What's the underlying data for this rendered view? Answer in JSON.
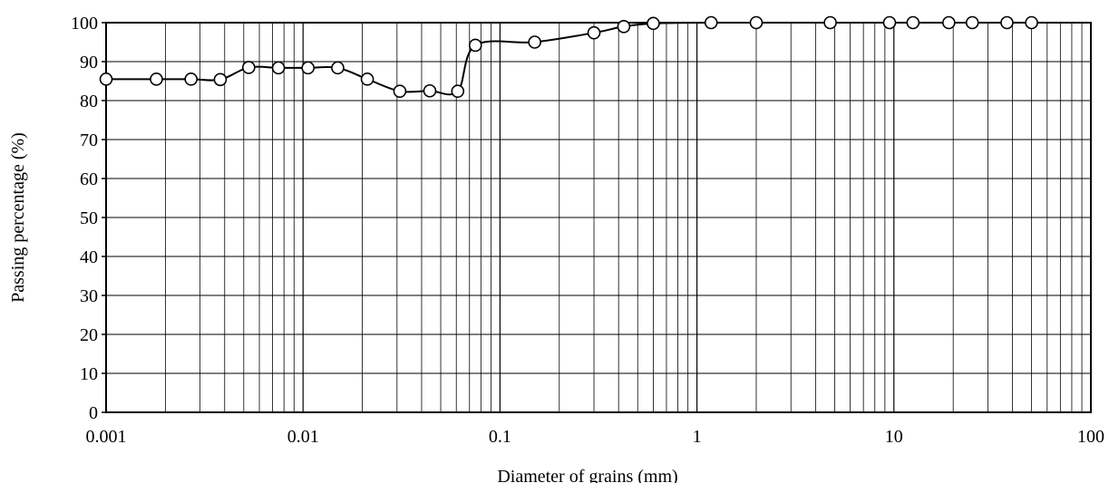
{
  "chart_data": {
    "type": "line",
    "title": "",
    "xlabel": "Diameter of grains (mm)",
    "ylabel": "Passing percentage (%)",
    "xscale": "log",
    "xlim": [
      0.001,
      100
    ],
    "ylim": [
      0,
      100
    ],
    "grid": true,
    "legend": "none",
    "x_ticks": [
      "0.001",
      "0.01",
      "0.1",
      "1",
      "10",
      "100"
    ],
    "y_ticks": [
      "0",
      "10",
      "20",
      "30",
      "40",
      "50",
      "60",
      "70",
      "80",
      "90",
      "100"
    ],
    "colors": {
      "line": "#000000",
      "marker_fill": "#ffffff",
      "grid": "#000000"
    },
    "series": [
      {
        "x": [
          0.001,
          0.0018,
          0.0027,
          0.0038,
          0.0053,
          0.0075,
          0.0106,
          0.015,
          0.0212,
          0.031,
          0.044,
          0.061,
          0.075,
          0.15,
          0.3,
          0.425,
          0.6,
          1.18,
          2.0,
          4.75,
          9.5,
          12.5,
          19.0,
          25.0,
          37.5,
          50.0
        ],
        "y": [
          85.5,
          85.5,
          85.5,
          85.4,
          88.5,
          88.4,
          88.4,
          88.4,
          85.5,
          82.4,
          82.5,
          82.4,
          94.2,
          95.0,
          97.4,
          99.0,
          99.8,
          100,
          100,
          100,
          100,
          100,
          100,
          100,
          100,
          100
        ]
      }
    ]
  }
}
